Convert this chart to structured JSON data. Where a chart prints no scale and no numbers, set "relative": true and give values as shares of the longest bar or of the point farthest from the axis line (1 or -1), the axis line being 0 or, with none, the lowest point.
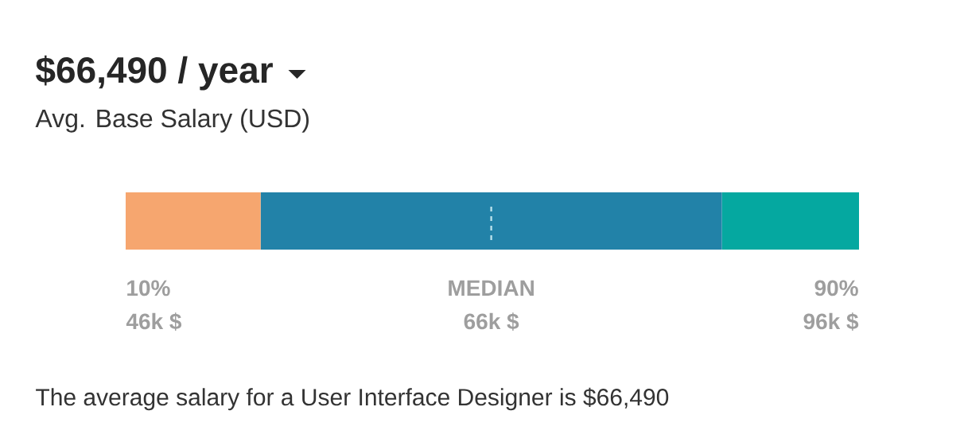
{
  "chart_data": {
    "type": "bar",
    "orientation": "horizontal",
    "stacked": true,
    "relative": true,
    "title": "$66,490 / year",
    "subtitle": "Avg. Base Salary (USD)",
    "categories": [
      null
    ],
    "series": [
      {
        "color": "#f6a66f",
        "values": [
          0.184
        ]
      },
      {
        "color": "#2282a8",
        "values": [
          0.629
        ]
      },
      {
        "color": "#05a8a0",
        "values": [
          0.187
        ]
      }
    ],
    "ref_lines": [
      {
        "axis": "x",
        "value": 0.4985,
        "color": "#b8e0ea",
        "line_style": "dashed"
      }
    ],
    "annotations": [
      "10%",
      "46k $",
      "MEDIAN",
      "66k $",
      "90%",
      "96k $",
      "The average salary for a User Interface Designer is $66,490"
    ]
  }
}
